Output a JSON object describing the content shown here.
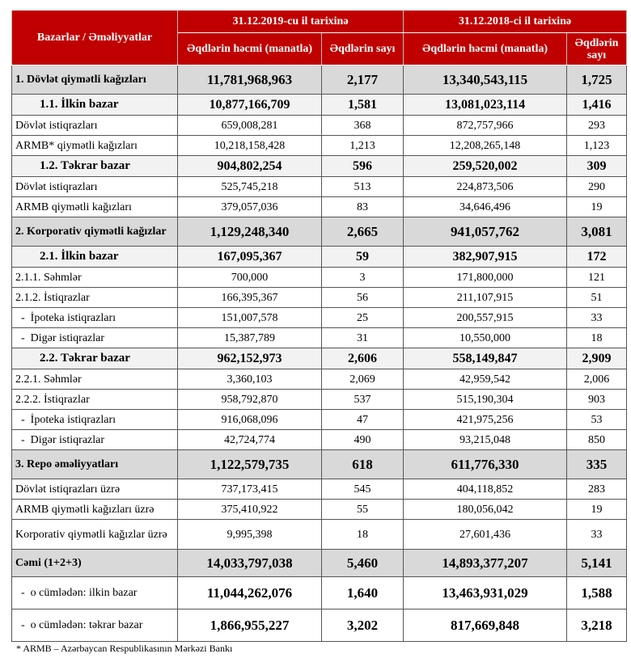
{
  "header": {
    "col_label": "Bazarlar / Əməliyyatlar",
    "period_2019": "31.12.2019-cu il tarixinə",
    "period_2018": "31.12.2018-ci il tarixinə",
    "volume": "Əqdlərin həcmi (manatla)",
    "count": "Əqdlərin sayı"
  },
  "rows": [
    {
      "label": "1. Dövlət qiymətli kağızları",
      "v19": "11,781,968,963",
      "c19": "2,177",
      "v18": "13,340,543,115",
      "c18": "1,725",
      "type": "main"
    },
    {
      "label": "1.1. İlkin bazar",
      "v19": "10,877,166,709",
      "c19": "1,581",
      "v18": "13,081,023,114",
      "c18": "1,416",
      "type": "sub"
    },
    {
      "label": "Dövlət istiqrazları",
      "v19": "659,008,281",
      "c19": "368",
      "v18": "872,757,966",
      "c18": "293",
      "type": "plain"
    },
    {
      "label": "ARMB* qiymətli kağızları",
      "v19": "10,218,158,428",
      "c19": "1,213",
      "v18": "12,208,265,148",
      "c18": "1,123",
      "type": "plain"
    },
    {
      "label": "1.2. Təkrar bazar",
      "v19": "904,802,254",
      "c19": "596",
      "v18": "259,520,002",
      "c18": "309",
      "type": "sub"
    },
    {
      "label": "Dövlət istiqrazları",
      "v19": "525,745,218",
      "c19": "513",
      "v18": "224,873,506",
      "c18": "290",
      "type": "plain"
    },
    {
      "label": "ARMB qiymətli kağızları",
      "v19": "379,057,036",
      "c19": "83",
      "v18": "34,646,496",
      "c18": "19",
      "type": "plain"
    },
    {
      "label": "2. Korporativ qiymətli kağızlar",
      "v19": "1,129,248,340",
      "c19": "2,665",
      "v18": "941,057,762",
      "c18": "3,081",
      "type": "main"
    },
    {
      "label": "2.1. İlkin bazar",
      "v19": "167,095,367",
      "c19": "59",
      "v18": "382,907,915",
      "c18": "172",
      "type": "sub"
    },
    {
      "label": "2.1.1. Səhmlər",
      "v19": "700,000",
      "c19": "3",
      "v18": "171,800,000",
      "c18": "121",
      "type": "plain"
    },
    {
      "label": "2.1.2. İstiqrazlar",
      "v19": "166,395,367",
      "c19": "56",
      "v18": "211,107,915",
      "c18": "51",
      "type": "plain"
    },
    {
      "label": "  -  İpoteka istiqrazları",
      "v19": "151,007,578",
      "c19": "25",
      "v18": "200,557,915",
      "c18": "33",
      "type": "plain"
    },
    {
      "label": "  -  Digər istiqrazlar",
      "v19": "15,387,789",
      "c19": "31",
      "v18": "10,550,000",
      "c18": "18",
      "type": "plain"
    },
    {
      "label": "2.2. Təkrar bazar",
      "v19": "962,152,973",
      "c19": "2,606",
      "v18": "558,149,847",
      "c18": "2,909",
      "type": "sub"
    },
    {
      "label": "2.2.1. Səhmlər",
      "v19": "3,360,103",
      "c19": "2,069",
      "v18": "42,959,542",
      "c18": "2,006",
      "type": "plain"
    },
    {
      "label": "2.2.2. İstiqrazlar",
      "v19": "958,792,870",
      "c19": "537",
      "v18": "515,190,304",
      "c18": "903",
      "type": "plain"
    },
    {
      "label": "  -  İpoteka istiqrazları",
      "v19": "916,068,096",
      "c19": "47",
      "v18": "421,975,256",
      "c18": "53",
      "type": "plain"
    },
    {
      "label": "  -  Digər istiqrazlar",
      "v19": "42,724,774",
      "c19": "490",
      "v18": "93,215,048",
      "c18": "850",
      "type": "plain"
    },
    {
      "label": "3. Repo əməliyyatları",
      "v19": "1,122,579,735",
      "c19": "618",
      "v18": "611,776,330",
      "c18": "335",
      "type": "main"
    },
    {
      "label": "Dövlət istiqrazları üzrə",
      "v19": "737,173,415",
      "c19": "545",
      "v18": "404,118,852",
      "c18": "283",
      "type": "plain"
    },
    {
      "label": "ARMB qiymətli kağızları üzrə",
      "v19": "375,410,922",
      "c19": "55",
      "v18": "180,056,042",
      "c18": "19",
      "type": "plain"
    },
    {
      "label": "Korporativ qiymətli kağızlar üzrə",
      "v19": "9,995,398",
      "c19": "18",
      "v18": "27,601,436",
      "c18": "33",
      "type": "plain"
    },
    {
      "label": "Cəmi (1+2+3)",
      "v19": "14,033,797,038",
      "c19": "5,460",
      "v18": "14,893,377,207",
      "c18": "5,141",
      "type": "main"
    },
    {
      "label": "  -  o cümlədən: ilkin bazar",
      "v19": "11,044,262,076",
      "c19": "1,640",
      "v18": "13,463,931,029",
      "c18": "1,588",
      "type": "tot"
    },
    {
      "label": "  -  o cümlədən: təkrar bazar",
      "v19": "1,866,955,227",
      "c19": "3,202",
      "v18": "817,669,848",
      "c18": "3,218",
      "type": "tot"
    }
  ],
  "footnote": "* ARMB – Azərbaycan Respublikasının Mərkəzi Bankı",
  "colors": {
    "header_bg": "#c00000",
    "main_row_bg": "#d9d9d9",
    "sub_row_bg": "#f2f2f2"
  }
}
